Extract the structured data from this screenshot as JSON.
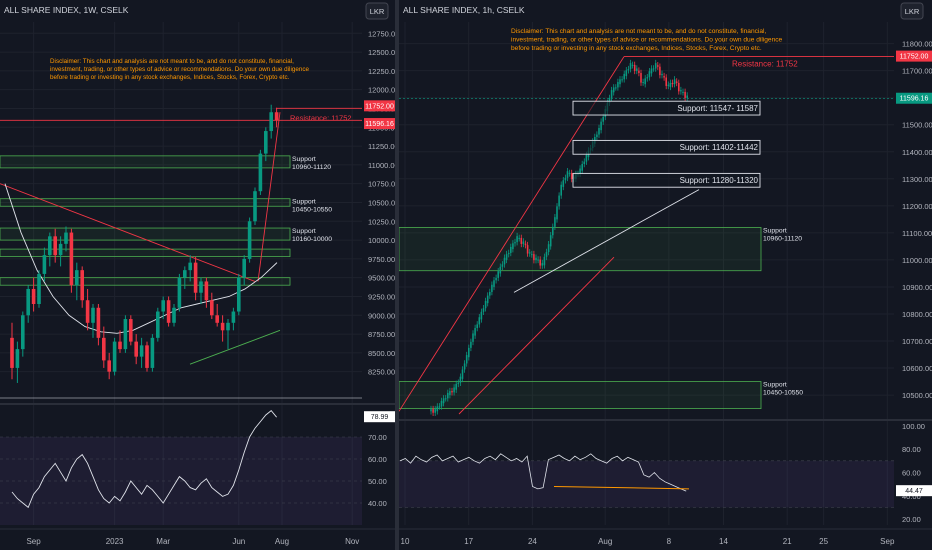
{
  "colors": {
    "background": "#131722",
    "grid": "#1e222d",
    "up": "#089981",
    "down": "#f23645",
    "zone_stroke": "#4caf50",
    "zone_fill": "rgba(76,175,80,0.08)",
    "resistance": "#f23645",
    "disclaimer": "#ff9800",
    "axis_text": "#b2b5be",
    "rsi_band": "rgba(126,87,194,0.10)",
    "rsi_line": "#e0e3eb",
    "trend_red": "#f23645",
    "trend_white": "#e0e3eb",
    "trend_green": "#4caf50",
    "divergence": "#ff9800"
  },
  "disclaimer_text": "Disclaimer: This chart and analysis are not meant to be, and do not constitute, financial, investment, trading, or other types of advice or recommendations. Do your own due diligence before trading or investing in any stock exchanges, Indices, Stocks, Forex, Crypto etc.",
  "chart_data": [
    {
      "type": "candlestick",
      "title": "ALL SHARE INDEX, 1W, CSELK",
      "currency_button": "LKR",
      "ylim": [
        7900,
        12900
      ],
      "y_ticks": [
        8250,
        8500,
        8750,
        9000,
        9250,
        9500,
        9750,
        10000,
        10250,
        10500,
        10750,
        11000,
        11250,
        11500,
        11750,
        12000,
        12250,
        12500,
        12750
      ],
      "y_tick_labels": [
        "8250.00",
        "8500.00",
        "8750.00",
        "9000.00",
        "9250.00",
        "9500.00",
        "9750.00",
        "10000.00",
        "10250.00",
        "10500.00",
        "10750.00",
        "11000.00",
        "11250.00",
        "11500.00",
        "11750.00",
        "12000.00",
        "12250.00",
        "12500.00",
        "12750.00"
      ],
      "x_ticks": [
        {
          "label": "Sep",
          "week": 4
        },
        {
          "label": "2023",
          "week": 19
        },
        {
          "label": "Mar",
          "week": 28
        },
        {
          "label": "Jun",
          "week": 42
        },
        {
          "label": "Aug",
          "week": 50
        },
        {
          "label": "Nov",
          "week": 63
        }
      ],
      "price_labels": [
        {
          "label": "11752.00",
          "value": 11752,
          "color": "#f23645"
        },
        {
          "label": "11596.16",
          "value": 11596.16,
          "color": "#f23645"
        }
      ],
      "candles": [
        {
          "o": 8700,
          "h": 8900,
          "l": 8150,
          "c": 8300
        },
        {
          "o": 8300,
          "h": 8650,
          "l": 8100,
          "c": 8550
        },
        {
          "o": 8550,
          "h": 9050,
          "l": 8450,
          "c": 9000
        },
        {
          "o": 9000,
          "h": 9400,
          "l": 8900,
          "c": 9350
        },
        {
          "o": 9350,
          "h": 9500,
          "l": 9050,
          "c": 9150
        },
        {
          "o": 9150,
          "h": 9600,
          "l": 9100,
          "c": 9550
        },
        {
          "o": 9550,
          "h": 9900,
          "l": 9450,
          "c": 9800
        },
        {
          "o": 9800,
          "h": 10100,
          "l": 9650,
          "c": 10050
        },
        {
          "o": 10050,
          "h": 10150,
          "l": 9700,
          "c": 9800
        },
        {
          "o": 9800,
          "h": 10050,
          "l": 9650,
          "c": 9950
        },
        {
          "o": 9950,
          "h": 10180,
          "l": 9850,
          "c": 10100
        },
        {
          "o": 10100,
          "h": 10150,
          "l": 9300,
          "c": 9400
        },
        {
          "o": 9400,
          "h": 9700,
          "l": 9200,
          "c": 9600
        },
        {
          "o": 9600,
          "h": 9650,
          "l": 9100,
          "c": 9200
        },
        {
          "o": 9200,
          "h": 9350,
          "l": 8800,
          "c": 8900
        },
        {
          "o": 8900,
          "h": 9150,
          "l": 8700,
          "c": 9100
        },
        {
          "o": 9100,
          "h": 9150,
          "l": 8600,
          "c": 8700
        },
        {
          "o": 8700,
          "h": 8850,
          "l": 8300,
          "c": 8400
        },
        {
          "o": 8400,
          "h": 8500,
          "l": 8150,
          "c": 8250
        },
        {
          "o": 8250,
          "h": 8700,
          "l": 8200,
          "c": 8650
        },
        {
          "o": 8650,
          "h": 8800,
          "l": 8500,
          "c": 8550
        },
        {
          "o": 8550,
          "h": 9000,
          "l": 8500,
          "c": 8950
        },
        {
          "o": 8950,
          "h": 9000,
          "l": 8600,
          "c": 8650
        },
        {
          "o": 8650,
          "h": 8750,
          "l": 8350,
          "c": 8450
        },
        {
          "o": 8450,
          "h": 8700,
          "l": 8300,
          "c": 8600
        },
        {
          "o": 8600,
          "h": 8650,
          "l": 8250,
          "c": 8300
        },
        {
          "o": 8300,
          "h": 8750,
          "l": 8250,
          "c": 8700
        },
        {
          "o": 8700,
          "h": 9100,
          "l": 8650,
          "c": 9050
        },
        {
          "o": 9050,
          "h": 9250,
          "l": 8950,
          "c": 9200
        },
        {
          "o": 9200,
          "h": 9250,
          "l": 8850,
          "c": 8900
        },
        {
          "o": 8900,
          "h": 9150,
          "l": 8850,
          "c": 9100
        },
        {
          "o": 9100,
          "h": 9550,
          "l": 9050,
          "c": 9500
        },
        {
          "o": 9500,
          "h": 9650,
          "l": 9350,
          "c": 9600
        },
        {
          "o": 9600,
          "h": 9800,
          "l": 9450,
          "c": 9700
        },
        {
          "o": 9700,
          "h": 9780,
          "l": 9200,
          "c": 9300
        },
        {
          "o": 9300,
          "h": 9500,
          "l": 9150,
          "c": 9450
        },
        {
          "o": 9450,
          "h": 9500,
          "l": 9100,
          "c": 9200
        },
        {
          "o": 9200,
          "h": 9300,
          "l": 8950,
          "c": 9000
        },
        {
          "o": 9000,
          "h": 9150,
          "l": 8850,
          "c": 8900
        },
        {
          "o": 8900,
          "h": 9000,
          "l": 8650,
          "c": 8800
        },
        {
          "o": 8800,
          "h": 8950,
          "l": 8550,
          "c": 8900
        },
        {
          "o": 8900,
          "h": 9100,
          "l": 8800,
          "c": 9050
        },
        {
          "o": 9050,
          "h": 9550,
          "l": 9000,
          "c": 9500
        },
        {
          "o": 9500,
          "h": 9800,
          "l": 9400,
          "c": 9750
        },
        {
          "o": 9750,
          "h": 10300,
          "l": 9700,
          "c": 10250
        },
        {
          "o": 10250,
          "h": 10700,
          "l": 10200,
          "c": 10650
        },
        {
          "o": 10650,
          "h": 11200,
          "l": 10600,
          "c": 11150
        },
        {
          "o": 11150,
          "h": 11500,
          "l": 11050,
          "c": 11450
        },
        {
          "o": 11450,
          "h": 11800,
          "l": 11350,
          "c": 11700
        },
        {
          "o": 11700,
          "h": 11760,
          "l": 11500,
          "c": 11596
        }
      ],
      "support_zones": [
        {
          "from": 10960,
          "to": 11120,
          "label_top": "Support",
          "label_bottom": "10960-11120"
        },
        {
          "from": 10450,
          "to": 10550,
          "label_top": "Support",
          "label_bottom": "10450-10550"
        },
        {
          "from": 10000,
          "to": 10160,
          "label_top": "Support",
          "label_bottom": "10160-10000"
        },
        {
          "from": 9780,
          "to": 9880,
          "label_top": "",
          "label_bottom": ""
        },
        {
          "from": 9400,
          "to": 9500,
          "label_top": "",
          "label_bottom": ""
        }
      ],
      "resistance": {
        "value": 11752,
        "label": "Resistance: 11752"
      },
      "rsi": {
        "ylim": [
          30,
          85
        ],
        "y_ticks": [
          40,
          50,
          60,
          70
        ],
        "y_tick_labels": [
          "40.00",
          "50.00",
          "60.00",
          "70.00"
        ],
        "band": [
          30,
          70
        ],
        "last_label": "78.99",
        "values": [
          45,
          42,
          40,
          38,
          44,
          47,
          52,
          55,
          58,
          54,
          50,
          56,
          60,
          62,
          58,
          52,
          46,
          42,
          40,
          43,
          41,
          45,
          50,
          47,
          44,
          48,
          46,
          43,
          40,
          44,
          48,
          52,
          50,
          47,
          46,
          49,
          51,
          47,
          45,
          43,
          44,
          48,
          55,
          63,
          70,
          74,
          77,
          80,
          82,
          79
        ]
      }
    },
    {
      "type": "candlestick",
      "title": "ALL SHARE INDEX, 1h, CSELK",
      "currency_button": "LKR",
      "ylim": [
        10430,
        11880
      ],
      "y_ticks": [
        10500,
        10600,
        10700,
        10800,
        10900,
        11000,
        11100,
        11200,
        11300,
        11400,
        11500,
        11600,
        11700,
        11800
      ],
      "y_tick_labels": [
        "10500.00",
        "10600.00",
        "10700.00",
        "10800.00",
        "10900.00",
        "11000.00",
        "11100.00",
        "11200.00",
        "11300.00",
        "11400.00",
        "11500.00",
        "11600.00",
        "11700.00",
        "11800.00"
      ],
      "x_ticks": [
        {
          "label": "10",
          "day": 10
        },
        {
          "label": "17",
          "day": 17
        },
        {
          "label": "24",
          "day": 24
        },
        {
          "label": "Aug",
          "day": 32
        },
        {
          "label": "8",
          "day": 39
        },
        {
          "label": "14",
          "day": 45
        },
        {
          "label": "21",
          "day": 52
        },
        {
          "label": "25",
          "day": 56
        },
        {
          "label": "Sep",
          "day": 63
        }
      ],
      "price_labels": [
        {
          "label": "11752.00",
          "value": 11752,
          "color": "#f23645"
        },
        {
          "label": "11596.16",
          "value": 11596.16,
          "color": "#089981"
        }
      ],
      "resistance": {
        "value": 11752,
        "label": "Resistance: 11752"
      },
      "support_boxes": [
        {
          "from": 11547,
          "to": 11587,
          "label": "Support: 11547- 11587"
        },
        {
          "from": 11402,
          "to": 11442,
          "label": "Support: 11402-11442"
        },
        {
          "from": 11280,
          "to": 11320,
          "label": "Support: 11280-11320"
        }
      ],
      "support_zones": [
        {
          "from": 10960,
          "to": 11120,
          "label_top": "Support",
          "label_bottom": "10960-11120"
        },
        {
          "from": 10450,
          "to": 10550,
          "label_top": "Support",
          "label_bottom": "10450-10550"
        }
      ],
      "candles_daily_close": [
        10440,
        10470,
        10500,
        10520,
        10560,
        10640,
        10720,
        10780,
        10840,
        10900,
        10950,
        11000,
        11040,
        11080,
        11060,
        11020,
        11000,
        10980,
        11050,
        11150,
        11270,
        11320,
        11300,
        11330,
        11380,
        11430,
        11480,
        11550,
        11620,
        11650,
        11680,
        11720,
        11700,
        11650,
        11690,
        11720,
        11680,
        11640,
        11660,
        11620,
        11600
      ],
      "rsi": {
        "ylim": [
          15,
          105
        ],
        "y_ticks": [
          20,
          40,
          60,
          80,
          100
        ],
        "y_tick_labels": [
          "20.00",
          "40.00",
          "60.00",
          "80.00",
          "100.00"
        ],
        "band": [
          30,
          70
        ],
        "last_label": "44.47",
        "values": [
          70,
          72,
          68,
          74,
          71,
          69,
          73,
          75,
          70,
          72,
          74,
          69,
          71,
          73,
          70,
          68,
          72,
          74,
          71,
          76,
          73,
          70,
          72,
          69,
          74,
          48,
          46,
          47,
          71,
          73,
          75,
          72,
          70,
          74,
          71,
          73,
          76,
          72,
          70,
          68,
          72,
          74,
          70,
          73,
          71,
          69,
          58,
          56,
          60,
          55,
          52,
          50,
          48,
          46,
          44
        ]
      }
    }
  ]
}
